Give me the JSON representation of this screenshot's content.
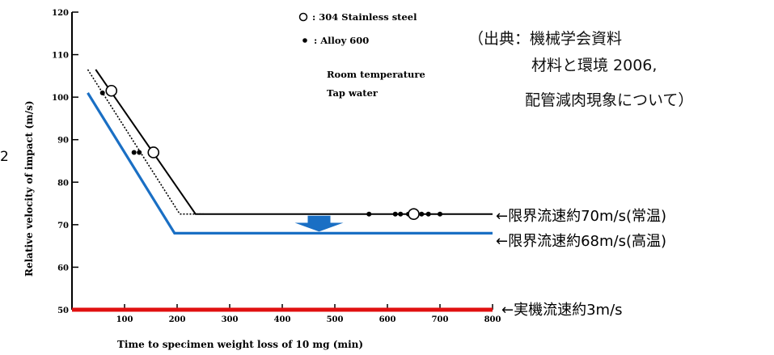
{
  "chart_data": {
    "type": "line",
    "xlabel": "Time to specimen weight loss of 10 mg (min)",
    "ylabel": "Relative velocity of impact (m/s)",
    "xlim": [
      0,
      800
    ],
    "ylim": [
      50,
      120
    ],
    "xticks": [
      "100",
      "200",
      "300",
      "400",
      "500",
      "600",
      "700",
      "800"
    ],
    "yticks": [
      "50",
      "60",
      "70",
      "80",
      "90",
      "100",
      "110",
      "120"
    ],
    "grid": false,
    "legend": [
      {
        "marker": "open-circle",
        "label": ": 304 Stainless steel"
      },
      {
        "marker": "filled-dot",
        "label": ": Alloy 600"
      }
    ],
    "conditions": [
      "Room temperature",
      "Tap water"
    ],
    "series": [
      {
        "style": "solid",
        "color": "#000000",
        "x": [
          45,
          235,
          800
        ],
        "y": [
          106.5,
          72.5,
          72.5
        ]
      },
      {
        "style": "dotted",
        "color": "#000000",
        "x": [
          30,
          205,
          250
        ],
        "y": [
          106.5,
          72.5,
          72.5
        ]
      },
      {
        "style": "solid",
        "color": "#1a6fc4",
        "x": [
          30,
          195,
          800
        ],
        "y": [
          101,
          68,
          68
        ]
      },
      {
        "style": "solid",
        "color": "#e01010",
        "x": [
          0,
          800
        ],
        "y": [
          50,
          50
        ]
      }
    ],
    "points_304": [
      {
        "x": 75,
        "y": 101.5
      },
      {
        "x": 155,
        "y": 87
      },
      {
        "x": 650,
        "y": 72.5
      }
    ],
    "points_alloy600": [
      {
        "x": 58,
        "y": 101
      },
      {
        "x": 118,
        "y": 87
      },
      {
        "x": 128,
        "y": 87
      },
      {
        "x": 565,
        "y": 72.5
      },
      {
        "x": 615,
        "y": 72.5
      },
      {
        "x": 625,
        "y": 72.5
      },
      {
        "x": 640,
        "y": 72.5
      },
      {
        "x": 665,
        "y": 72.5
      },
      {
        "x": 678,
        "y": 72.5
      },
      {
        "x": 700,
        "y": 72.5
      }
    ]
  },
  "source_note": [
    "（出典：機械学会資料",
    "材料と環境 2006,",
    "配管減肉現象について）"
  ],
  "edge_digit": "2",
  "annotations": [
    {
      "text": "←限界流速約70m/s(常温)",
      "color": "#111111"
    },
    {
      "text": "←限界流速約68m/s(高温)",
      "color": "#1a6fc4"
    },
    {
      "text": "←実機流速約3m/s",
      "color": "#e01010"
    }
  ],
  "arrow_color": "#1a6fc4"
}
